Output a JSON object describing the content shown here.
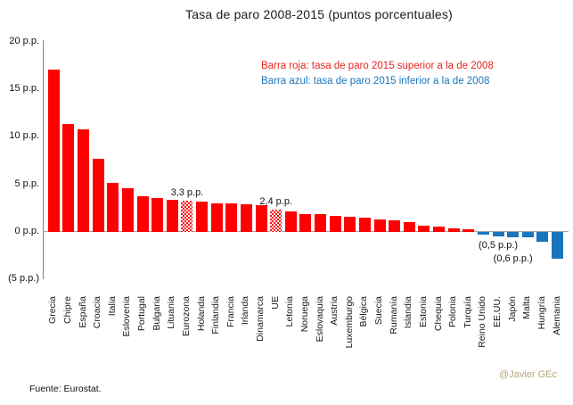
{
  "header": {
    "title": "Tasa de paro 2008-2015 (puntos porcentuales)"
  },
  "legend": {
    "red_line": "Barra roja:  tasa de paro 2015 superior a la de 2008",
    "blue_line": "Barra azul: tasa de paro 2015 inferior a la de 2008"
  },
  "y_axis": {
    "tick_labels": [
      "20 p.p.",
      "15 p.p.",
      "10 p.p.",
      "5 p.p.",
      "0 p.p.",
      "(5 p.p.)"
    ],
    "max": 20,
    "min": -5,
    "step": 5,
    "unit": "p.p."
  },
  "colors": {
    "red": "#fe0000",
    "blue": "#1a75bc",
    "axis_gray": "#7f7f7f",
    "watermark": "#b3a87c"
  },
  "footer": {
    "source": "Fuente: Eurostat.",
    "watermark": "@Javier GEc"
  },
  "chart_data": {
    "type": "bar",
    "title": "Tasa de paro 2008-2015 (puntos porcentuales)",
    "xlabel": "",
    "ylabel": "puntos porcentuales",
    "ylim": [
      -5,
      20
    ],
    "grid": false,
    "legend_position": "top-right",
    "categories": [
      "Grecia",
      "Chipre",
      "España",
      "Croacia",
      "Italia",
      "Eslovenia",
      "Portugal",
      "Bulgaria",
      "Lituania",
      "Eurozona",
      "Holanda",
      "Finlandia",
      "Francia",
      "Irlanda",
      "Dinamarca",
      "UE",
      "Letonia",
      "Noruega",
      "Eslovaquia",
      "Austria",
      "Luxemburgo",
      "Bélgica",
      "Suecia",
      "Rumanía",
      "Islandia",
      "Estonia",
      "Chequia",
      "Polonia",
      "Turquía",
      "Reino Unido",
      "EE.UU.",
      "Japón",
      "Malta",
      "Hungría",
      "Alemania"
    ],
    "values": [
      17.1,
      11.4,
      10.8,
      7.7,
      5.2,
      4.6,
      3.8,
      3.6,
      3.4,
      3.3,
      3.2,
      3.0,
      3.0,
      2.9,
      2.8,
      2.4,
      2.2,
      1.9,
      1.9,
      1.7,
      1.6,
      1.5,
      1.3,
      1.2,
      1.0,
      0.7,
      0.6,
      0.4,
      0.3,
      -0.3,
      -0.5,
      -0.6,
      -0.6,
      -1.0,
      -2.8
    ],
    "bar_styles": [
      "solid-red",
      "solid-red",
      "solid-red",
      "solid-red",
      "solid-red",
      "solid-red",
      "solid-red",
      "solid-red",
      "solid-red",
      "hatched-red",
      "solid-red",
      "solid-red",
      "solid-red",
      "solid-red",
      "solid-red",
      "hatched-red",
      "solid-red",
      "solid-red",
      "solid-red",
      "solid-red",
      "solid-red",
      "solid-red",
      "solid-red",
      "solid-red",
      "solid-red",
      "solid-red",
      "solid-red",
      "solid-red",
      "solid-red",
      "solid-blue",
      "solid-blue",
      "solid-blue",
      "solid-blue",
      "solid-blue",
      "solid-blue"
    ],
    "annotations": [
      {
        "category": "Eurozona",
        "text": "3,3 p.p.",
        "position": "above"
      },
      {
        "category": "UE",
        "text": "2,4 p.p.",
        "position": "above"
      },
      {
        "category": "EE.UU.",
        "text": "(0,5 p.p.)",
        "position": "below"
      },
      {
        "category": "Japón",
        "text": "(0,6 p.p.)",
        "position": "below"
      }
    ]
  }
}
